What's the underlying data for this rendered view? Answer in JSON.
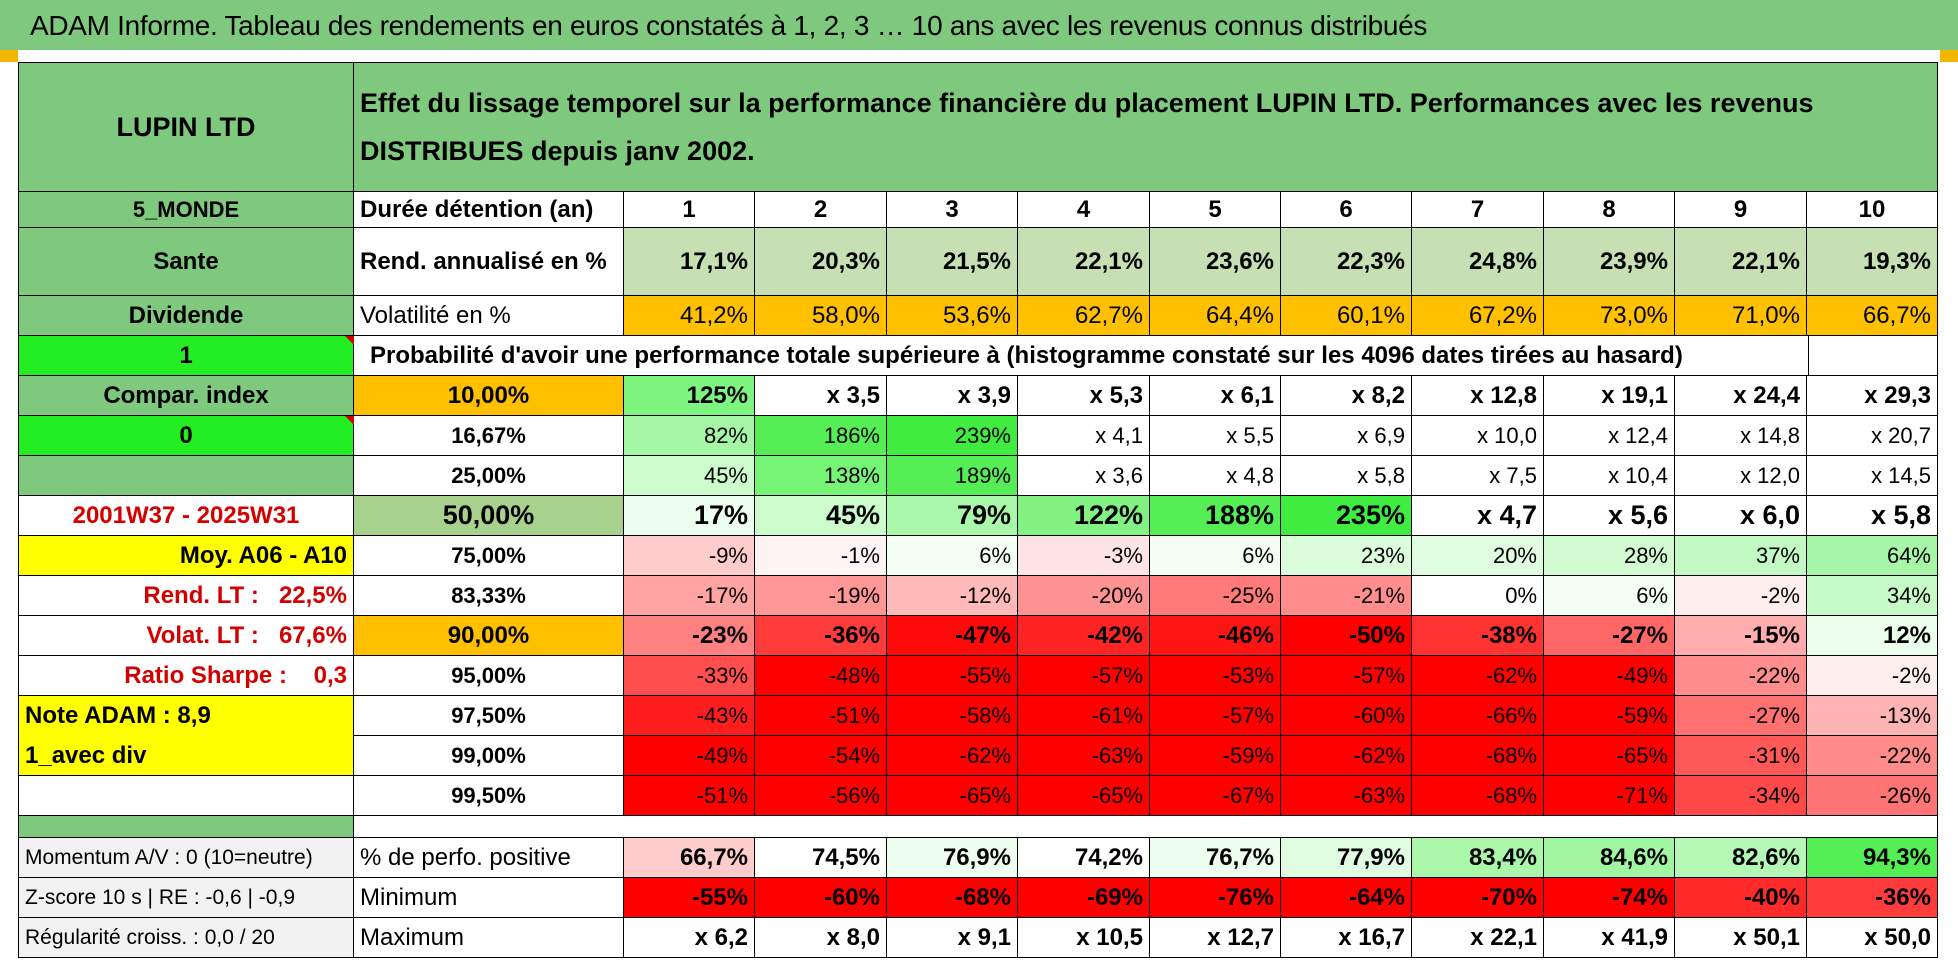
{
  "title": "ADAM Informe. Tableau des rendements en euros constatés à 1, 2, 3 … 10 ans avec les revenus connus distribués",
  "header": {
    "name": "LUPIN LTD",
    "description": "Effet du lissage temporel sur la performance financière du placement LUPIN LTD. Performances avec les revenus DISTRIBUES depuis janv 2002."
  },
  "left_panel": {
    "region": "5_MONDE",
    "sector": "Sante",
    "mode": "Dividende",
    "flag1": "1",
    "compar_label": "Compar. index",
    "flag0": "0",
    "period": "2001W37 - 2025W31",
    "moy": "Moy. A06 - A10",
    "rend_label": "Rend. LT :",
    "rend_value": "22,5%",
    "volat_label": "Volat. LT :",
    "volat_value": "67,6%",
    "sharpe_label": "Ratio Sharpe :",
    "sharpe_value": "0,3",
    "note": "Note ADAM : 8,9",
    "div": "1_avec div",
    "momentum": "Momentum A/V : 0 (10=neutre)",
    "zscore": "Z-score 10 s | RE : -0,6 | -0,9",
    "regularite": "Régularité croiss. : 0,0 / 20"
  },
  "durations": {
    "label": "Durée détention (an)",
    "years": [
      "1",
      "2",
      "3",
      "4",
      "5",
      "6",
      "7",
      "8",
      "9",
      "10"
    ]
  },
  "rend": {
    "label": "Rend. annualisé en %",
    "values": [
      "17,1%",
      "20,3%",
      "21,5%",
      "22,1%",
      "23,6%",
      "22,3%",
      "24,8%",
      "23,9%",
      "22,1%",
      "19,3%"
    ]
  },
  "volat": {
    "label": "Volatilité en %",
    "values": [
      "41,2%",
      "58,0%",
      "53,6%",
      "62,7%",
      "64,4%",
      "60,1%",
      "67,2%",
      "73,0%",
      "71,0%",
      "66,7%"
    ]
  },
  "prob_label": "Probabilité d'avoir une performance totale supérieure à (histogramme constaté sur les 4096 dates tirées au hasard)",
  "prob_rows": [
    {
      "pct": "10,00%",
      "bold": true,
      "size": "m",
      "values": [
        "125%",
        "x 3,5",
        "x 3,9",
        "x 5,3",
        "x 6,1",
        "x 8,2",
        "x 12,8",
        "x 19,1",
        "x 24,4",
        "x 29,3"
      ],
      "colors": [
        "#7ef57e",
        "#ffffff",
        "#ffffff",
        "#ffffff",
        "#ffffff",
        "#ffffff",
        "#ffffff",
        "#ffffff",
        "#ffffff",
        "#ffffff"
      ]
    },
    {
      "pct": "16,67%",
      "bold": false,
      "size": "s",
      "values": [
        "82%",
        "186%",
        "239%",
        "x 4,1",
        "x 5,5",
        "x 6,9",
        "x 10,0",
        "x 12,4",
        "x 14,8",
        "x 20,7"
      ],
      "colors": [
        "#a5f7a5",
        "#55ef55",
        "#3fec3f",
        "#ffffff",
        "#ffffff",
        "#ffffff",
        "#ffffff",
        "#ffffff",
        "#ffffff",
        "#ffffff"
      ]
    },
    {
      "pct": "25,00%",
      "bold": false,
      "size": "s",
      "values": [
        "45%",
        "138%",
        "189%",
        "x 3,6",
        "x 4,8",
        "x 5,8",
        "x 7,5",
        "x 10,4",
        "x 12,0",
        "x 14,5"
      ],
      "colors": [
        "#ccfbcc",
        "#75f475",
        "#55ef55",
        "#ffffff",
        "#ffffff",
        "#ffffff",
        "#ffffff",
        "#ffffff",
        "#ffffff",
        "#ffffff"
      ]
    },
    {
      "pct": "50,00%",
      "bold": true,
      "size": "l",
      "values": [
        "17%",
        "45%",
        "79%",
        "122%",
        "188%",
        "235%",
        "x 4,7",
        "x 5,6",
        "x 6,0",
        "x 5,8"
      ],
      "colors": [
        "#eefeee",
        "#ccfbcc",
        "#a9f7a9",
        "#82f282",
        "#55ef55",
        "#3fec3f",
        "#ffffff",
        "#ffffff",
        "#ffffff",
        "#ffffff"
      ]
    },
    {
      "pct": "75,00%",
      "bold": false,
      "size": "s",
      "values": [
        "-9%",
        "-1%",
        "6%",
        "-3%",
        "6%",
        "23%",
        "20%",
        "28%",
        "37%",
        "64%"
      ],
      "colors": [
        "#ffcccc",
        "#fff4f4",
        "#f4fff4",
        "#ffe4e4",
        "#f4fff4",
        "#dcfddc",
        "#e1fde1",
        "#d2fbd2",
        "#c3fac3",
        "#a8f6a8"
      ]
    },
    {
      "pct": "83,33%",
      "bold": false,
      "size": "s",
      "values": [
        "-17%",
        "-19%",
        "-12%",
        "-20%",
        "-25%",
        "-21%",
        "0%",
        "6%",
        "-2%",
        "34%"
      ],
      "colors": [
        "#ffa3a3",
        "#ff9797",
        "#ffb9b9",
        "#ff9393",
        "#ff7a7a",
        "#ff8d8d",
        "#ffffff",
        "#f4fff4",
        "#ffeeee",
        "#c6fac6"
      ]
    },
    {
      "pct": "90,00%",
      "bold": true,
      "size": "m",
      "values": [
        "-23%",
        "-36%",
        "-47%",
        "-42%",
        "-46%",
        "-50%",
        "-38%",
        "-27%",
        "-15%",
        "12%"
      ],
      "colors": [
        "#ff8080",
        "#ff3c3c",
        "#ff0a0a",
        "#ff2424",
        "#ff1414",
        "#ff0000",
        "#ff3232",
        "#ff6666",
        "#ffadad",
        "#ecfeec"
      ]
    },
    {
      "pct": "95,00%",
      "bold": false,
      "size": "s",
      "values": [
        "-33%",
        "-48%",
        "-55%",
        "-57%",
        "-53%",
        "-57%",
        "-62%",
        "-49%",
        "-22%",
        "-2%"
      ],
      "colors": [
        "#ff4e4e",
        "#ff0000",
        "#ff0000",
        "#ff0000",
        "#ff0000",
        "#ff0000",
        "#ff0000",
        "#ff0000",
        "#ff8d8d",
        "#ffeeee"
      ]
    },
    {
      "pct": "97,50%",
      "bold": false,
      "size": "s",
      "values": [
        "-43%",
        "-51%",
        "-58%",
        "-61%",
        "-57%",
        "-60%",
        "-66%",
        "-59%",
        "-27%",
        "-13%"
      ],
      "colors": [
        "#ff1e1e",
        "#ff0000",
        "#ff0000",
        "#ff0000",
        "#ff0000",
        "#ff0000",
        "#ff0000",
        "#ff0000",
        "#ff7070",
        "#ffb4b4"
      ]
    },
    {
      "pct": "99,00%",
      "bold": false,
      "size": "s",
      "values": [
        "-49%",
        "-54%",
        "-62%",
        "-63%",
        "-59%",
        "-62%",
        "-68%",
        "-65%",
        "-31%",
        "-22%"
      ],
      "colors": [
        "#ff0000",
        "#ff0000",
        "#ff0000",
        "#ff0000",
        "#ff0000",
        "#ff0000",
        "#ff0000",
        "#ff0000",
        "#ff5858",
        "#ff8b8b"
      ]
    },
    {
      "pct": "99,50%",
      "bold": false,
      "size": "s",
      "values": [
        "-51%",
        "-56%",
        "-65%",
        "-65%",
        "-67%",
        "-63%",
        "-68%",
        "-71%",
        "-34%",
        "-26%"
      ],
      "colors": [
        "#ff0000",
        "#ff0000",
        "#ff0000",
        "#ff0000",
        "#ff0000",
        "#ff0000",
        "#ff0000",
        "#ff0000",
        "#ff4848",
        "#ff7474"
      ]
    }
  ],
  "stats": [
    {
      "label": "% de perfo. positive",
      "values": [
        "66,7%",
        "74,5%",
        "76,9%",
        "74,2%",
        "76,7%",
        "77,9%",
        "83,4%",
        "84,6%",
        "82,6%",
        "94,3%"
      ],
      "colors": [
        "#ffcccc",
        "#ffffff",
        "#eefeee",
        "#ffffff",
        "#eefeee",
        "#e1fde1",
        "#aaf7aa",
        "#a2f6a2",
        "#b5f8b5",
        "#55ee55"
      ]
    },
    {
      "label": "Minimum",
      "values": [
        "-55%",
        "-60%",
        "-68%",
        "-69%",
        "-76%",
        "-64%",
        "-70%",
        "-74%",
        "-40%",
        "-36%"
      ],
      "colors": [
        "#ff0000",
        "#ff0000",
        "#ff0000",
        "#ff0000",
        "#ff0000",
        "#ff0000",
        "#ff0000",
        "#ff0000",
        "#ff2a2a",
        "#ff3c3c"
      ]
    },
    {
      "label": "Maximum",
      "values": [
        "x 6,2",
        "x 8,0",
        "x 9,1",
        "x 10,5",
        "x 12,7",
        "x 16,7",
        "x 22,1",
        "x 41,9",
        "x 50,1",
        "x 50,0"
      ],
      "colors": [
        "#ffffff",
        "#ffffff",
        "#ffffff",
        "#ffffff",
        "#ffffff",
        "#ffffff",
        "#ffffff",
        "#ffffff",
        "#ffffff",
        "#ffffff"
      ]
    }
  ],
  "colors": {
    "header_green": "#7fc97f",
    "rend_green": "#c6e0b4",
    "volat_orange": "#ffc000",
    "bright_green": "#22ee22",
    "yellow": "#ffff00",
    "label_red": "#d40000",
    "row50_pct_green": "#a9d18e"
  }
}
